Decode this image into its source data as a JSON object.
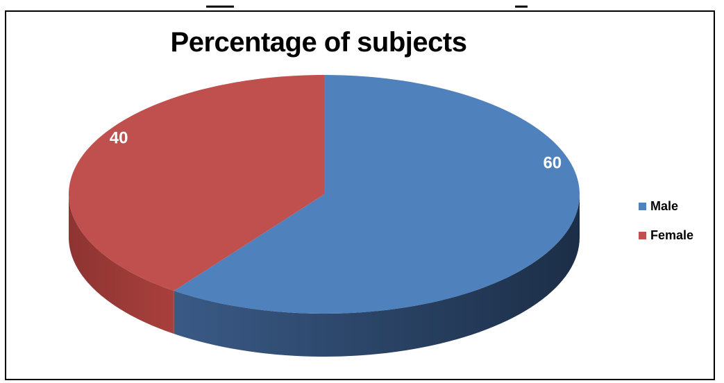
{
  "chart_data": {
    "type": "pie",
    "title": "Percentage of subjects",
    "categories": [
      "Male",
      "Female"
    ],
    "values": [
      60,
      40
    ],
    "data_labels": [
      "60",
      "40"
    ],
    "colors": [
      "#4F81BD",
      "#C0504D"
    ],
    "legend_position": "right",
    "style": "3d"
  }
}
